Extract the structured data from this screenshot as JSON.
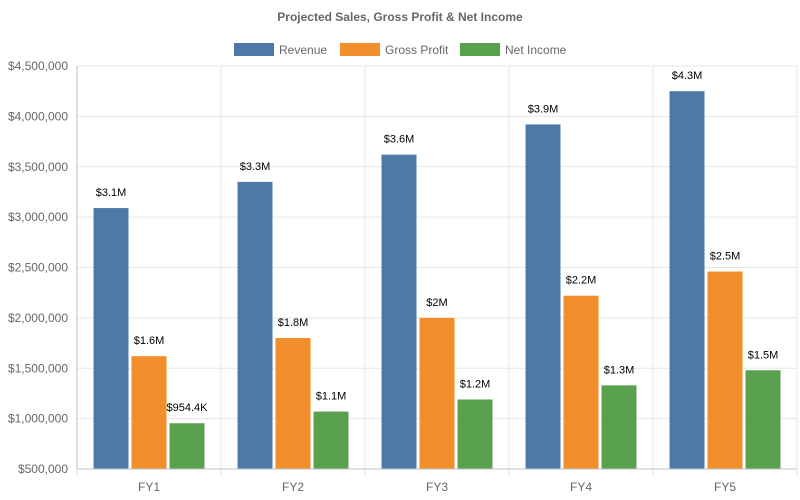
{
  "chart_data": {
    "type": "bar",
    "title": "Projected Sales, Gross Profit & Net Income",
    "xlabel": "",
    "ylabel": "",
    "categories": [
      "FY1",
      "FY2",
      "FY3",
      "FY4",
      "FY5"
    ],
    "ylim": [
      500000,
      4500000
    ],
    "yticks": [
      500000,
      1000000,
      1500000,
      2000000,
      2500000,
      3000000,
      3500000,
      4000000,
      4500000
    ],
    "ytick_labels": [
      "$500,000",
      "$1,000,000",
      "$1,500,000",
      "$2,000,000",
      "$2,500,000",
      "$3,000,000",
      "$3,500,000",
      "$4,000,000",
      "$4,500,000"
    ],
    "grid": true,
    "legend_position": "top-center",
    "series": [
      {
        "name": "Revenue",
        "color": "#4e79a7",
        "values": [
          3090000,
          3350000,
          3620000,
          3920000,
          4250000
        ],
        "labels": [
          "$3.1M",
          "$3.3M",
          "$3.6M",
          "$3.9M",
          "$4.3M"
        ]
      },
      {
        "name": "Gross Profit",
        "color": "#f28e2b",
        "values": [
          1620000,
          1800000,
          2000000,
          2220000,
          2460000
        ],
        "labels": [
          "$1.6M",
          "$1.8M",
          "$2M",
          "$2.2M",
          "$2.5M"
        ]
      },
      {
        "name": "Net Income",
        "color": "#59a14f",
        "values": [
          954400,
          1070000,
          1190000,
          1330000,
          1480000
        ],
        "labels": [
          "$954.4K",
          "$1.1M",
          "$1.2M",
          "$1.3M",
          "$1.5M"
        ]
      }
    ]
  }
}
